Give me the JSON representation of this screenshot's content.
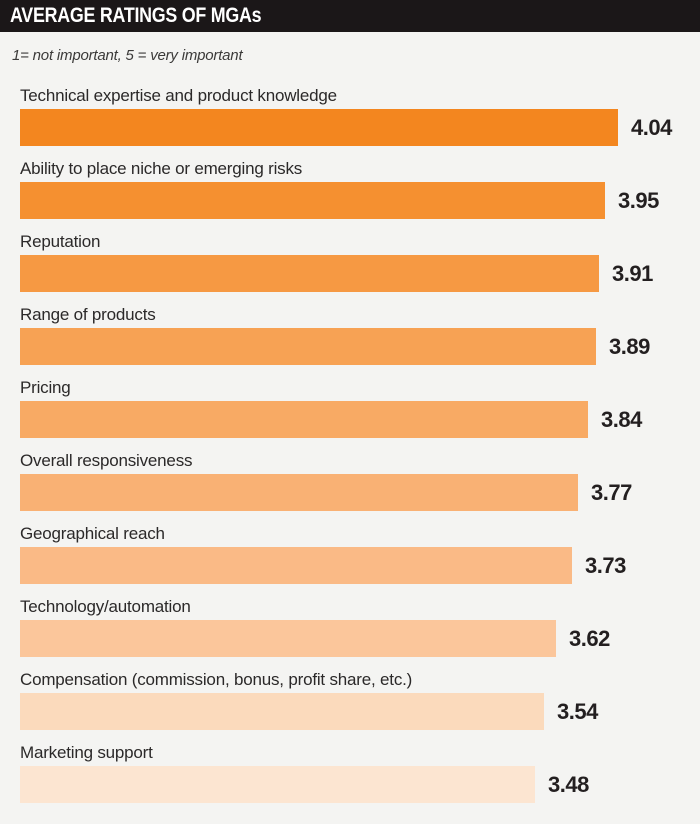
{
  "header": {
    "title": "AVERAGE RATINGS OF MGAs",
    "bg_color": "#1B1718",
    "text_color": "#FFFFFF"
  },
  "subtitle": "1= not important, 5 = very important",
  "colors": {
    "page_bg": "#F4F4F2",
    "label_text": "#2B2929",
    "value_text": "#231F20"
  },
  "chart_data": {
    "type": "bar",
    "orientation": "horizontal",
    "title": "AVERAGE RATINGS OF MGAs",
    "subtitle": "1= not important, 5 = very important",
    "value_scale": "ratings from 1 (not important) to 5 (very important)",
    "xlim": [
      0,
      4.5
    ],
    "grid": false,
    "legend": false,
    "categories": [
      "Technical expertise and product knowledge",
      "Ability to place niche or emerging risks",
      "Reputation",
      "Range of products",
      "Pricing",
      "Overall responsiveness",
      "Geographical reach",
      "Technology/automation",
      "Compensation (commission, bonus, profit share, etc.)",
      "Marketing support"
    ],
    "values": [
      4.04,
      3.95,
      3.91,
      3.89,
      3.84,
      3.77,
      3.73,
      3.62,
      3.54,
      3.48
    ],
    "value_labels": [
      "4.04",
      "3.95",
      "3.91",
      "3.89",
      "3.84",
      "3.77",
      "3.73",
      "3.62",
      "3.54",
      "3.48"
    ],
    "bar_colors": [
      "#F3861F",
      "#F59030",
      "#F69943",
      "#F7A254",
      "#F8AA64",
      "#F9B174",
      "#FABA86",
      "#FBC69B",
      "#FBDABC",
      "#FCE5D1"
    ]
  }
}
